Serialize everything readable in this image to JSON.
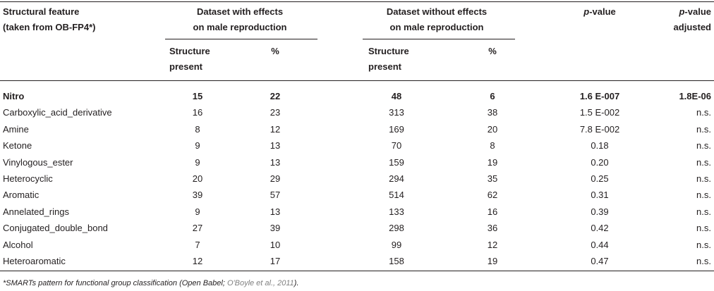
{
  "headers": {
    "structural_feature": [
      "Structural feature",
      "(taken from OB-FP4*)"
    ],
    "with_effects": [
      "Dataset with effects",
      "on male reproduction"
    ],
    "without_effects": [
      "Dataset without effects",
      "on male reproduction"
    ],
    "p_value": {
      "italic": "p",
      "rest": "-value"
    },
    "p_value_adjusted": {
      "italic": "p",
      "rest": "-value",
      "line2": "adjusted"
    },
    "structure_present": [
      "Structure",
      "present"
    ],
    "percent": "%"
  },
  "rows": [
    {
      "feature": "Nitro",
      "with_present": "15",
      "with_pct": "22",
      "without_present": "48",
      "without_pct": "6",
      "p": "1.6 E-007",
      "p_adj": "1.8E-06",
      "bold": true
    },
    {
      "feature": "Carboxylic_acid_derivative",
      "with_present": "16",
      "with_pct": "23",
      "without_present": "313",
      "without_pct": "38",
      "p": "1.5 E-002",
      "p_adj": "n.s."
    },
    {
      "feature": "Amine",
      "with_present": "8",
      "with_pct": "12",
      "without_present": "169",
      "without_pct": "20",
      "p": "7.8 E-002",
      "p_adj": "n.s."
    },
    {
      "feature": "Ketone",
      "with_present": "9",
      "with_pct": "13",
      "without_present": "70",
      "without_pct": "8",
      "p": "0.18",
      "p_adj": "n.s."
    },
    {
      "feature": "Vinylogous_ester",
      "with_present": "9",
      "with_pct": "13",
      "without_present": "159",
      "without_pct": "19",
      "p": "0.20",
      "p_adj": "n.s."
    },
    {
      "feature": "Heterocyclic",
      "with_present": "20",
      "with_pct": "29",
      "without_present": "294",
      "without_pct": "35",
      "p": "0.25",
      "p_adj": "n.s."
    },
    {
      "feature": "Aromatic",
      "with_present": "39",
      "with_pct": "57",
      "without_present": "514",
      "without_pct": "62",
      "p": "0.31",
      "p_adj": "n.s."
    },
    {
      "feature": "Annelated_rings",
      "with_present": "9",
      "with_pct": "13",
      "without_present": "133",
      "without_pct": "16",
      "p": "0.39",
      "p_adj": "n.s."
    },
    {
      "feature": "Conjugated_double_bond",
      "with_present": "27",
      "with_pct": "39",
      "without_present": "298",
      "without_pct": "36",
      "p": "0.42",
      "p_adj": "n.s."
    },
    {
      "feature": "Alcohol",
      "with_present": "7",
      "with_pct": "10",
      "without_present": "99",
      "without_pct": "12",
      "p": "0.44",
      "p_adj": "n.s."
    },
    {
      "feature": "Heteroaromatic",
      "with_present": "12",
      "with_pct": "17",
      "without_present": "158",
      "without_pct": "19",
      "p": "0.47",
      "p_adj": "n.s."
    }
  ],
  "footnote": {
    "text": "*SMARTs pattern for functional group classification (Open Babel; ",
    "ref": "O'Boyle et al., 2011",
    "end": ")."
  }
}
